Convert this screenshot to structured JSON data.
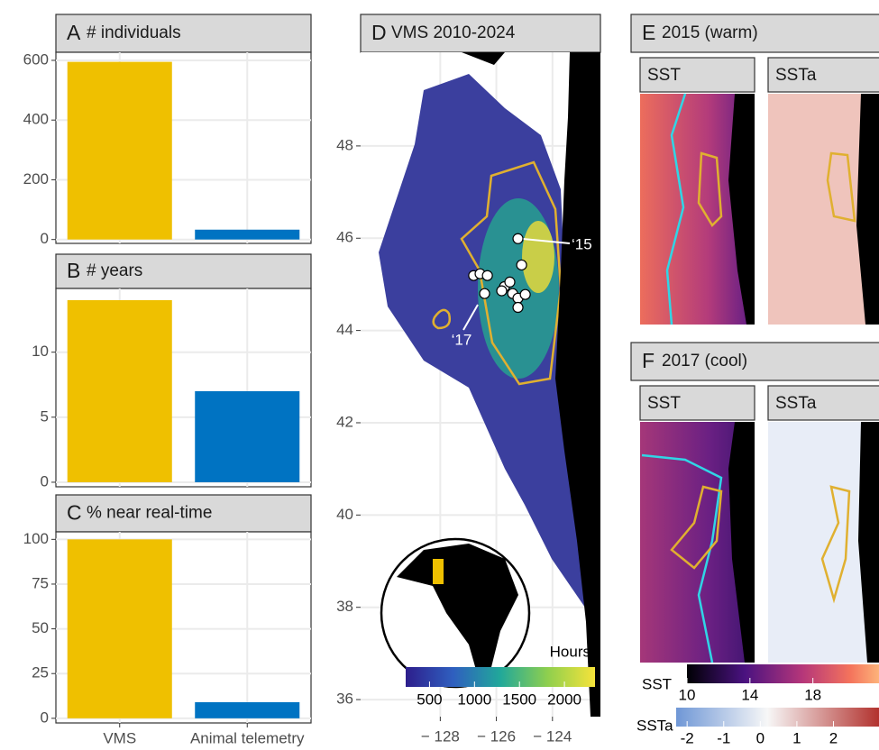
{
  "chart_data": [
    {
      "type": "bar",
      "panel": "A",
      "title": "# individuals",
      "categories": [
        "VMS",
        "Animal telemetry"
      ],
      "values": [
        595,
        33
      ],
      "colors": [
        "#efc000",
        "#0073c2"
      ],
      "ylim": [
        -13,
        627
      ],
      "yticks": [
        0,
        200,
        400,
        600
      ],
      "grid": true
    },
    {
      "type": "bar",
      "panel": "B",
      "title": "# years",
      "categories": [
        "VMS",
        "Animal telemetry"
      ],
      "values": [
        14,
        7
      ],
      "colors": [
        "#efc000",
        "#0073c2"
      ],
      "ylim": [
        -0.35,
        14.9
      ],
      "yticks": [
        0,
        5,
        10
      ],
      "grid": true
    },
    {
      "type": "bar",
      "panel": "C",
      "title": "% near real-time",
      "categories": [
        "VMS",
        "Animal telemetry"
      ],
      "values": [
        100,
        9
      ],
      "colors": [
        "#efc000",
        "#0073c2"
      ],
      "ylim": [
        -2.6,
        104.2
      ],
      "yticks": [
        0,
        25,
        50,
        75,
        100
      ],
      "grid": true
    },
    {
      "type": "map",
      "panel": "D",
      "title": "VMS 2010-2024",
      "x": [
        -125.23,
        -125.1,
        -126.81,
        -126.58,
        -126.32,
        -126.42,
        -125.71,
        -125.81,
        -125.52,
        -125.42,
        -125.23,
        -124.97,
        -125.23
      ],
      "y": [
        45.99,
        45.42,
        45.19,
        45.23,
        45.19,
        44.8,
        44.95,
        44.86,
        45.05,
        44.8,
        44.7,
        44.78,
        44.5
      ],
      "xlim": [
        -130.84,
        -122.29
      ],
      "ylim": [
        35.63,
        50.03
      ],
      "xticks": [
        {
          "value": -128,
          "label": "− 128"
        },
        {
          "value": -126,
          "label": "− 126"
        },
        {
          "value": -124,
          "label": "− 124"
        }
      ],
      "yticks": [
        36,
        38,
        40,
        42,
        44,
        46,
        48
      ],
      "annotations": [
        "‘15",
        "‘17"
      ],
      "colorbar": {
        "title": "Hours",
        "lim": [
          235,
          2340
        ],
        "ticks": [
          500,
          1000,
          1500,
          2000
        ]
      }
    },
    {
      "type": "sst",
      "panel": "E",
      "title": "2015 (warm)",
      "facets": [
        "SST",
        "SSTa"
      ]
    },
    {
      "type": "sst",
      "panel": "F",
      "title": "2017 (cool)",
      "facets": [
        "SST",
        "SSTa"
      ]
    }
  ],
  "legends": [
    {
      "name": "SST",
      "lim": [
        10,
        22.2
      ],
      "ticks": [
        10,
        14,
        18
      ]
    },
    {
      "name": "SSTa",
      "lim": [
        -2.3,
        2.9
      ],
      "ticks": [
        -2,
        -1,
        0,
        1,
        2
      ]
    }
  ]
}
